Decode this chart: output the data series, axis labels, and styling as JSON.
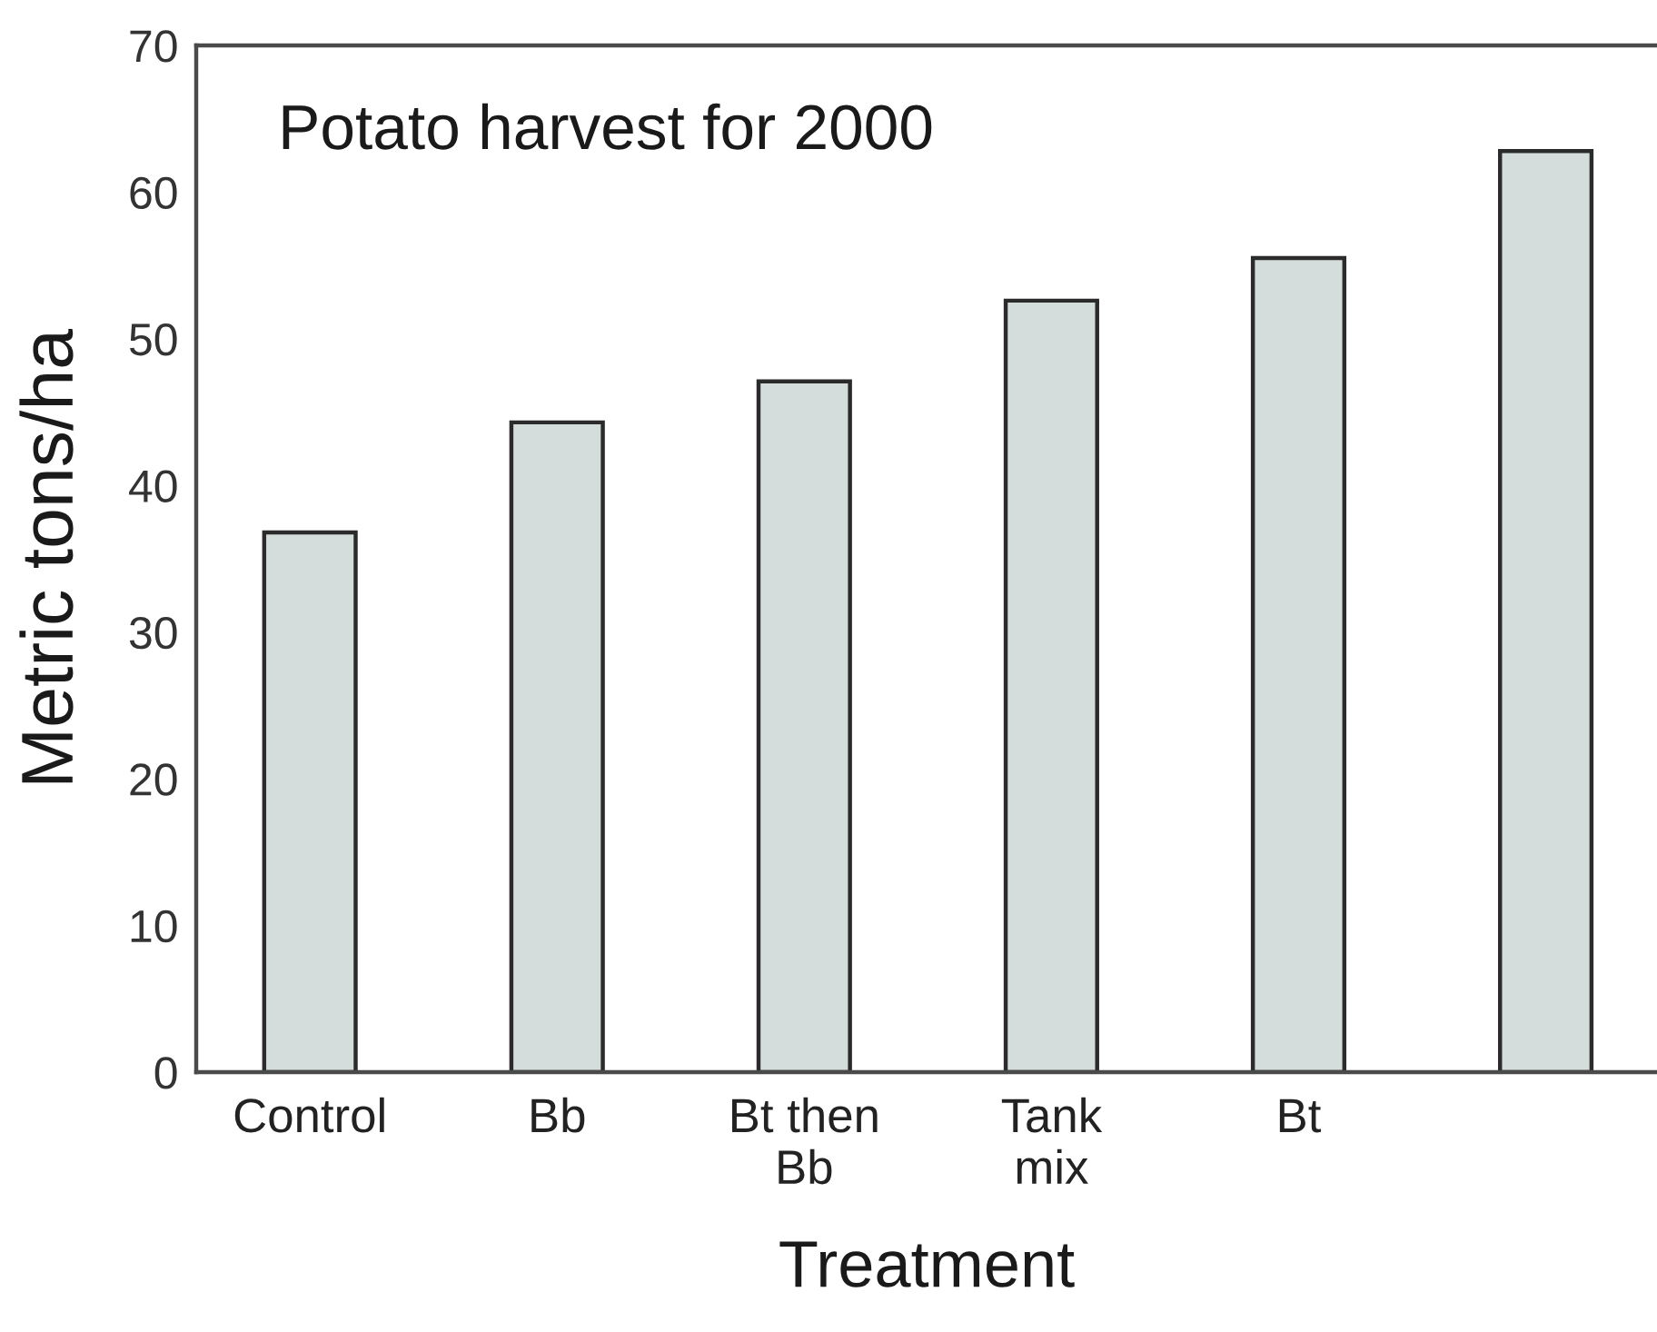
{
  "chart_data": {
    "type": "bar",
    "title": "Potato harvest for 2000",
    "xlabel": "Treatment",
    "ylabel": "Metric tons/ha",
    "categories": [
      "Control",
      "Bb",
      "Bt then\nBb",
      "Tank\nmix",
      "Bt",
      null
    ],
    "values": [
      36.8,
      44.3,
      47.1,
      52.6,
      55.5,
      62.8
    ],
    "color": "#d4dcdc",
    "ylim": [
      0,
      70
    ],
    "yticks": [
      0,
      10,
      20,
      30,
      40,
      50,
      60,
      70
    ]
  }
}
